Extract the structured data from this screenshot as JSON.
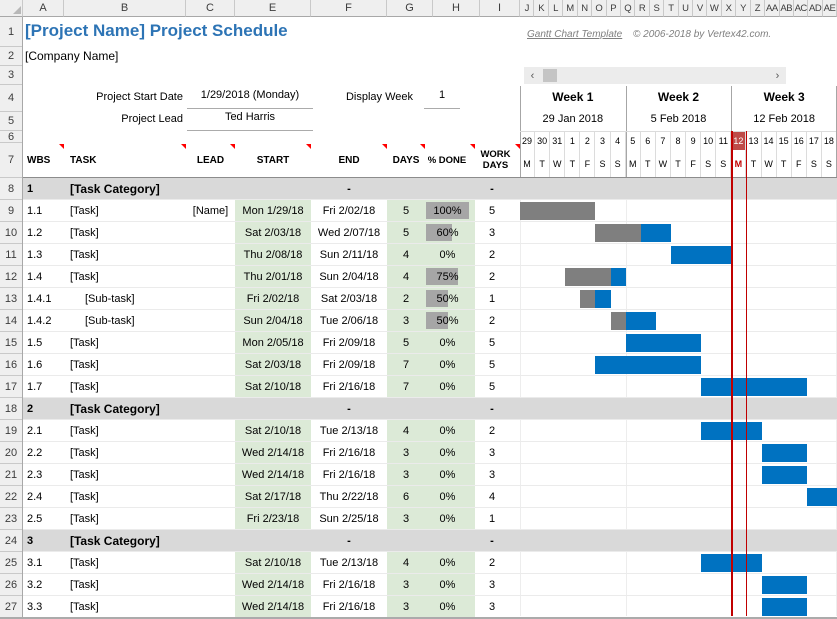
{
  "meta": {
    "title": "[Project Name] Project Schedule",
    "company": "[Company Name]",
    "link_label": "Gantt Chart Template",
    "copyright": "© 2006-2018 by Vertex42.com."
  },
  "controls": {
    "project_start_date_label": "Project Start Date",
    "project_start_date_value": "1/29/2018 (Monday)",
    "project_lead_label": "Project Lead",
    "project_lead_value": "Ted Harris",
    "display_week_label": "Display Week",
    "display_week_value": "1"
  },
  "spreadsheet": {
    "wide_columns": [
      "A",
      "B",
      "C",
      "E",
      "F",
      "G",
      "H",
      "I"
    ],
    "narrow_columns": [
      "J",
      "K",
      "L",
      "M",
      "N",
      "O",
      "P",
      "Q",
      "R",
      "S",
      "T",
      "U",
      "V",
      "W",
      "X",
      "Y",
      "Z",
      "AA",
      "AB",
      "AC",
      "AD",
      "AE"
    ],
    "row_numbers": [
      "1",
      "2",
      "3",
      "4",
      "5",
      "6",
      "7",
      "8",
      "9",
      "10",
      "11",
      "12",
      "13",
      "14",
      "15",
      "16",
      "17",
      "18",
      "19",
      "20",
      "21",
      "22",
      "23",
      "24",
      "25",
      "26",
      "27"
    ]
  },
  "table": {
    "headers": [
      "WBS",
      "TASK",
      "LEAD",
      "START",
      "END",
      "DAYS",
      "% DONE",
      "WORK DAYS"
    ]
  },
  "weeks": [
    {
      "label": "Week 1",
      "date": "29 Jan 2018",
      "days": [
        {
          "num": "29",
          "dow": "M"
        },
        {
          "num": "30",
          "dow": "T"
        },
        {
          "num": "31",
          "dow": "W"
        },
        {
          "num": "1",
          "dow": "T"
        },
        {
          "num": "2",
          "dow": "F"
        },
        {
          "num": "3",
          "dow": "S"
        },
        {
          "num": "4",
          "dow": "S"
        }
      ]
    },
    {
      "label": "Week 2",
      "date": "5 Feb 2018",
      "days": [
        {
          "num": "5",
          "dow": "M"
        },
        {
          "num": "6",
          "dow": "T"
        },
        {
          "num": "7",
          "dow": "W"
        },
        {
          "num": "8",
          "dow": "T"
        },
        {
          "num": "9",
          "dow": "F"
        },
        {
          "num": "10",
          "dow": "S"
        },
        {
          "num": "11",
          "dow": "S"
        }
      ]
    },
    {
      "label": "Week 3",
      "date": "12 Feb 2018",
      "days": [
        {
          "num": "12",
          "dow": "M",
          "current": true
        },
        {
          "num": "13",
          "dow": "T"
        },
        {
          "num": "14",
          "dow": "W"
        },
        {
          "num": "15",
          "dow": "T"
        },
        {
          "num": "16",
          "dow": "F"
        },
        {
          "num": "17",
          "dow": "S"
        },
        {
          "num": "18",
          "dow": "S"
        }
      ]
    }
  ],
  "rows": [
    {
      "type": "category",
      "wbs": "1",
      "task": "[Task Category]",
      "end": "-",
      "work": "-"
    },
    {
      "type": "task",
      "wbs": "1.1",
      "task": "[Task]",
      "lead": "[Name]",
      "start": "Mon 1/29/18",
      "end": "Fri 2/02/18",
      "days": "5",
      "done": "100%",
      "done_pct": 100,
      "work": "5",
      "bar_start_day": 0,
      "bar_days": 5,
      "bar_done_days": 5
    },
    {
      "type": "task",
      "wbs": "1.2",
      "task": "[Task]",
      "lead": "",
      "start": "Sat 2/03/18",
      "end": "Wed 2/07/18",
      "days": "5",
      "done": "60%",
      "done_pct": 60,
      "work": "3",
      "bar_start_day": 5,
      "bar_days": 5,
      "bar_done_days": 3
    },
    {
      "type": "task",
      "wbs": "1.3",
      "task": "[Task]",
      "lead": "",
      "start": "Thu 2/08/18",
      "end": "Sun 2/11/18",
      "days": "4",
      "done": "0%",
      "done_pct": 0,
      "work": "2",
      "bar_start_day": 10,
      "bar_days": 4,
      "bar_done_days": 0
    },
    {
      "type": "task",
      "wbs": "1.4",
      "task": "[Task]",
      "lead": "",
      "start": "Thu 2/01/18",
      "end": "Sun 2/04/18",
      "days": "4",
      "done": "75%",
      "done_pct": 75,
      "work": "2",
      "bar_start_day": 3,
      "bar_days": 4,
      "bar_done_days": 3
    },
    {
      "type": "subtask",
      "wbs": "1.4.1",
      "task": "[Sub-task]",
      "lead": "",
      "start": "Fri 2/02/18",
      "end": "Sat 2/03/18",
      "days": "2",
      "done": "50%",
      "done_pct": 50,
      "work": "1",
      "bar_start_day": 4,
      "bar_days": 2,
      "bar_done_days": 1
    },
    {
      "type": "subtask",
      "wbs": "1.4.2",
      "task": "[Sub-task]",
      "lead": "",
      "start": "Sun 2/04/18",
      "end": "Tue 2/06/18",
      "days": "3",
      "done": "50%",
      "done_pct": 50,
      "work": "2",
      "bar_start_day": 6,
      "bar_days": 3,
      "bar_done_days": 1
    },
    {
      "type": "task",
      "wbs": "1.5",
      "task": "[Task]",
      "lead": "",
      "start": "Mon 2/05/18",
      "end": "Fri 2/09/18",
      "days": "5",
      "done": "0%",
      "done_pct": 0,
      "work": "5",
      "bar_start_day": 7,
      "bar_days": 5,
      "bar_done_days": 0
    },
    {
      "type": "task",
      "wbs": "1.6",
      "task": "[Task]",
      "lead": "",
      "start": "Sat 2/03/18",
      "end": "Fri 2/09/18",
      "days": "7",
      "done": "0%",
      "done_pct": 0,
      "work": "5",
      "bar_start_day": 5,
      "bar_days": 7,
      "bar_done_days": 0
    },
    {
      "type": "task",
      "wbs": "1.7",
      "task": "[Task]",
      "lead": "",
      "start": "Sat 2/10/18",
      "end": "Fri 2/16/18",
      "days": "7",
      "done": "0%",
      "done_pct": 0,
      "work": "5",
      "bar_start_day": 12,
      "bar_days": 7,
      "bar_done_days": 0
    },
    {
      "type": "category",
      "wbs": "2",
      "task": "[Task Category]",
      "end": "-",
      "work": "-"
    },
    {
      "type": "task",
      "wbs": "2.1",
      "task": "[Task]",
      "lead": "",
      "start": "Sat 2/10/18",
      "end": "Tue 2/13/18",
      "days": "4",
      "done": "0%",
      "done_pct": 0,
      "work": "2",
      "bar_start_day": 12,
      "bar_days": 4,
      "bar_done_days": 0
    },
    {
      "type": "task",
      "wbs": "2.2",
      "task": "[Task]",
      "lead": "",
      "start": "Wed 2/14/18",
      "end": "Fri 2/16/18",
      "days": "3",
      "done": "0%",
      "done_pct": 0,
      "work": "3",
      "bar_start_day": 16,
      "bar_days": 3,
      "bar_done_days": 0
    },
    {
      "type": "task",
      "wbs": "2.3",
      "task": "[Task]",
      "lead": "",
      "start": "Wed 2/14/18",
      "end": "Fri 2/16/18",
      "days": "3",
      "done": "0%",
      "done_pct": 0,
      "work": "3",
      "bar_start_day": 16,
      "bar_days": 3,
      "bar_done_days": 0
    },
    {
      "type": "task",
      "wbs": "2.4",
      "task": "[Task]",
      "lead": "",
      "start": "Sat 2/17/18",
      "end": "Thu 2/22/18",
      "days": "6",
      "done": "0%",
      "done_pct": 0,
      "work": "4",
      "bar_start_day": 19,
      "bar_days": 6,
      "bar_done_days": 0
    },
    {
      "type": "task",
      "wbs": "2.5",
      "task": "[Task]",
      "lead": "",
      "start": "Fri 2/23/18",
      "end": "Sun 2/25/18",
      "days": "3",
      "done": "0%",
      "done_pct": 0,
      "work": "1",
      "bar_start_day": 25,
      "bar_days": 3,
      "bar_done_days": 0
    },
    {
      "type": "category",
      "wbs": "3",
      "task": "[Task Category]",
      "end": "-",
      "work": "-"
    },
    {
      "type": "task",
      "wbs": "3.1",
      "task": "[Task]",
      "lead": "",
      "start": "Sat 2/10/18",
      "end": "Tue 2/13/18",
      "days": "4",
      "done": "0%",
      "done_pct": 0,
      "work": "2",
      "bar_start_day": 12,
      "bar_days": 4,
      "bar_done_days": 0
    },
    {
      "type": "task",
      "wbs": "3.2",
      "task": "[Task]",
      "lead": "",
      "start": "Wed 2/14/18",
      "end": "Fri 2/16/18",
      "days": "3",
      "done": "0%",
      "done_pct": 0,
      "work": "3",
      "bar_start_day": 16,
      "bar_days": 3,
      "bar_done_days": 0
    },
    {
      "type": "task",
      "wbs": "3.3",
      "task": "[Task]",
      "lead": "",
      "start": "Wed 2/14/18",
      "end": "Fri 2/16/18",
      "days": "3",
      "done": "0%",
      "done_pct": 0,
      "work": "3",
      "bar_start_day": 16,
      "bar_days": 3,
      "bar_done_days": 0
    }
  ],
  "gantt": {
    "current_day_index": 14,
    "colors": {
      "title_blue": "#2D74B5",
      "bar_blue": "#0072C1",
      "bar_done_gray": "#7F7F7F",
      "category_bg": "#D9D9D9",
      "green_cell": "#DCEAD7",
      "databar_gray": "#A6A6A6",
      "current_day_bg": "#BE4B48",
      "current_day_line": "#C00000"
    }
  }
}
